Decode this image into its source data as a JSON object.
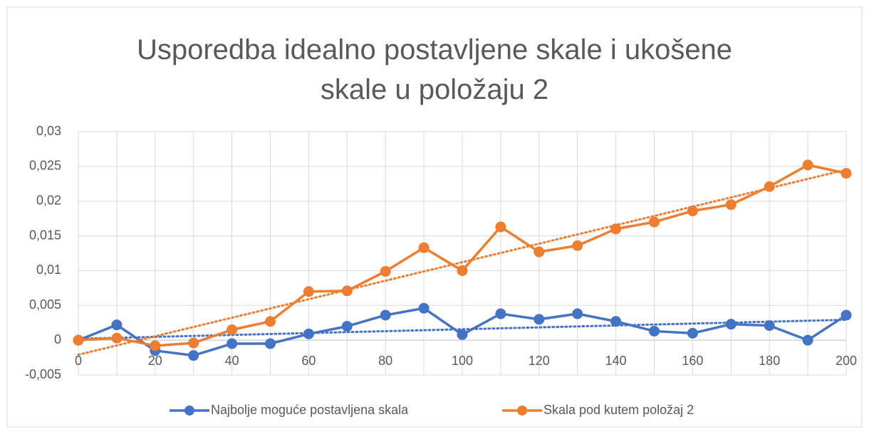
{
  "chart_data": {
    "type": "line",
    "title": "Usporedba idealno postavljene skale i ukošene skale u položaju 2",
    "x": [
      0,
      10,
      20,
      30,
      40,
      50,
      60,
      70,
      80,
      90,
      100,
      110,
      120,
      130,
      140,
      150,
      160,
      170,
      180,
      190,
      200
    ],
    "series": [
      {
        "name": "Najbolje moguće postavljena skala",
        "color": "#4472c4",
        "values": [
          0,
          0.0022,
          -0.0015,
          -0.0022,
          -0.0005,
          -0.0005,
          0.0009,
          0.002,
          0.0036,
          0.0046,
          0.0008,
          0.0038,
          0.003,
          0.0038,
          0.0027,
          0.0013,
          0.001,
          0.0023,
          0.0021,
          0,
          0.0036
        ]
      },
      {
        "name": "Skala pod kutem položaj 2",
        "color": "#ed7d31",
        "values": [
          0,
          0.0003,
          -0.0008,
          -0.0004,
          0.0015,
          0.0027,
          0.007,
          0.0071,
          0.0099,
          0.0133,
          0.01,
          0.0163,
          0.0127,
          0.0136,
          0.016,
          0.017,
          0.0186,
          0.0195,
          0.0221,
          0.0252,
          0.024
        ]
      }
    ],
    "xlim": [
      0,
      200
    ],
    "xticks": [
      0,
      20,
      40,
      60,
      80,
      100,
      120,
      140,
      160,
      180,
      200
    ],
    "ylim": [
      -0.005,
      0.03
    ],
    "yticks": [
      {
        "value": -0.005,
        "label": "-0,005"
      },
      0,
      {
        "value": 0.005,
        "label": "0,005"
      },
      {
        "value": 0.01,
        "label": "0,01"
      },
      {
        "value": 0.015,
        "label": "0,015"
      },
      {
        "value": 0.02,
        "label": "0,02"
      },
      {
        "value": 0.025,
        "label": "0,025"
      },
      {
        "value": 0.03,
        "label": "0,03"
      }
    ],
    "grid": true,
    "trendline": true,
    "legend": "bottom"
  }
}
